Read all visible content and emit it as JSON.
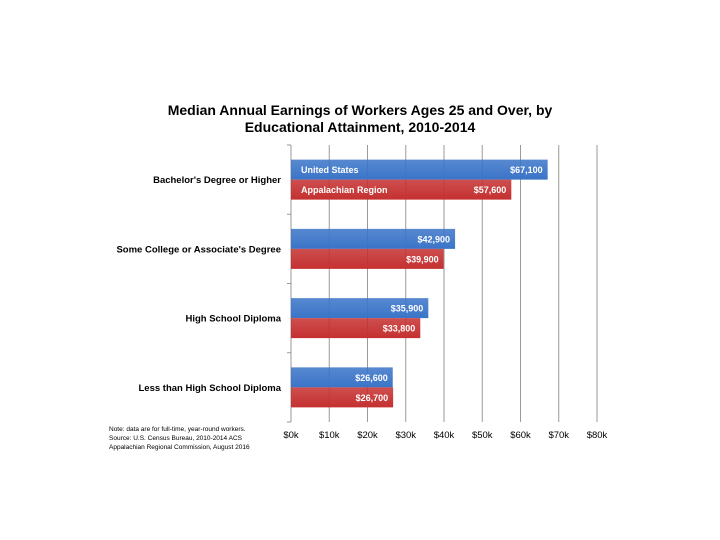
{
  "chart_data": {
    "type": "bar",
    "orientation": "horizontal",
    "title_lines": [
      "Median Annual Earnings of Workers Ages 25 and Over, by",
      "Educational Attainment, 2010-2014"
    ],
    "categories": [
      "Bachelor's Degree or Higher",
      "Some College or Associate's Degree",
      "High School Diploma",
      "Less than High School Diploma"
    ],
    "series": [
      {
        "name": "United States",
        "color": "#3a74c8",
        "values": [
          67100,
          42900,
          35900,
          26600
        ],
        "labels": [
          "$67,100",
          "$42,900",
          "$35,900",
          "$26,600"
        ]
      },
      {
        "name": "Appalachian Region",
        "color": "#c53030",
        "values": [
          57600,
          39900,
          33800,
          26700
        ],
        "labels": [
          "$57,600",
          "$39,900",
          "$33,800",
          "$26,700"
        ]
      }
    ],
    "xlim": [
      0,
      80000
    ],
    "xticks": [
      0,
      10000,
      20000,
      30000,
      40000,
      50000,
      60000,
      70000,
      80000
    ],
    "xtick_labels": [
      "$0k",
      "$10k",
      "$20k",
      "$30k",
      "$40k",
      "$50k",
      "$60k",
      "$70k",
      "$80k"
    ],
    "grid": true,
    "legend_placement": "inside first bar group",
    "note_lines": [
      "Note: data are for full-time, year-round workers.",
      "Source: U.S. Census Bureau, 2010-2014 ACS",
      "Appalachian Regional Commission, August 2016"
    ]
  }
}
